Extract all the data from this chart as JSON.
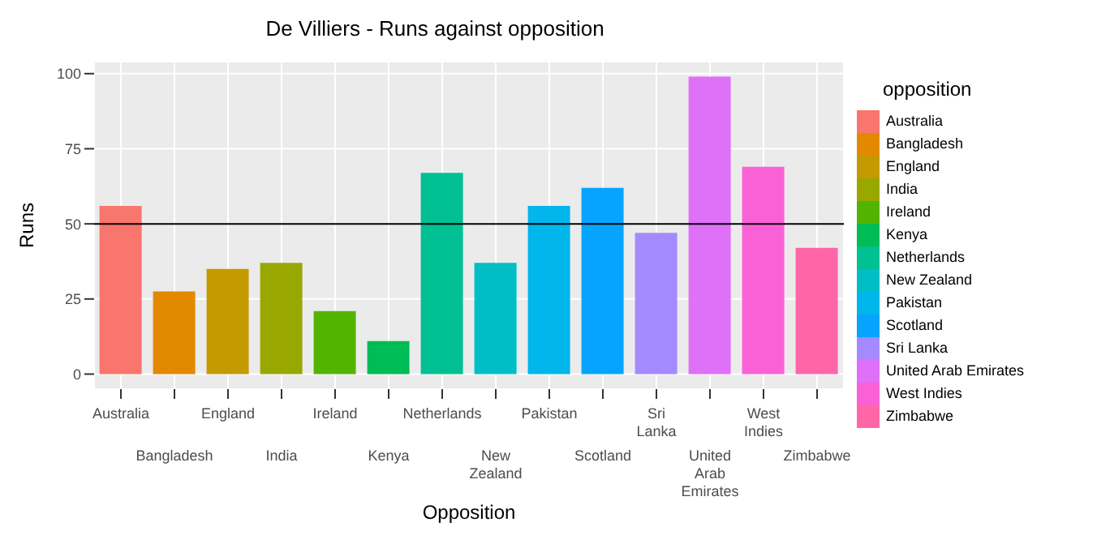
{
  "chart_data": {
    "type": "bar",
    "title": "De Villiers - Runs against opposition",
    "xlabel": "Opposition",
    "ylabel": "Runs",
    "legend_title": "opposition",
    "stacked": true,
    "categories": [
      "Australia",
      "Bangladesh",
      "England",
      "India",
      "Ireland",
      "Kenya",
      "Netherlands",
      "New Zealand",
      "Pakistan",
      "Scotland",
      "Sri Lanka",
      "United Arab Emirates",
      "West Indies",
      "Zimbabwe"
    ],
    "series": [
      {
        "name": "Australia",
        "color": "#f8766d",
        "values": [
          56,
          null,
          null,
          null,
          null,
          null,
          null,
          null,
          null,
          null,
          null,
          null,
          null,
          null
        ]
      },
      {
        "name": "Bangladesh",
        "color": "#e38900",
        "values": [
          null,
          27.5,
          null,
          null,
          null,
          null,
          null,
          null,
          null,
          null,
          null,
          null,
          null,
          null
        ]
      },
      {
        "name": "England",
        "color": "#c49a00",
        "values": [
          null,
          null,
          35,
          null,
          null,
          null,
          null,
          null,
          null,
          null,
          null,
          null,
          null,
          null
        ]
      },
      {
        "name": "India",
        "color": "#99a800",
        "values": [
          null,
          null,
          null,
          37,
          null,
          null,
          null,
          null,
          null,
          null,
          null,
          null,
          null,
          null
        ]
      },
      {
        "name": "Ireland",
        "color": "#53b400",
        "values": [
          null,
          null,
          null,
          null,
          21,
          null,
          null,
          null,
          null,
          null,
          null,
          null,
          null,
          null
        ]
      },
      {
        "name": "Kenya",
        "color": "#00bc56",
        "values": [
          null,
          null,
          null,
          null,
          null,
          11,
          null,
          null,
          null,
          null,
          null,
          null,
          null,
          null
        ]
      },
      {
        "name": "Netherlands",
        "color": "#00c094",
        "values": [
          null,
          null,
          null,
          null,
          null,
          null,
          67,
          null,
          null,
          null,
          null,
          null,
          null,
          null
        ]
      },
      {
        "name": "New Zealand",
        "color": "#00bfc4",
        "values": [
          null,
          null,
          null,
          null,
          null,
          null,
          null,
          37,
          null,
          null,
          null,
          null,
          null,
          null
        ]
      },
      {
        "name": "Pakistan",
        "color": "#00b6eb",
        "values": [
          null,
          null,
          null,
          null,
          null,
          null,
          null,
          null,
          56,
          null,
          null,
          null,
          null,
          null
        ]
      },
      {
        "name": "Scotland",
        "color": "#06a4ff",
        "values": [
          null,
          null,
          null,
          null,
          null,
          null,
          null,
          null,
          null,
          62,
          null,
          null,
          null,
          null
        ]
      },
      {
        "name": "Sri Lanka",
        "color": "#a58aff",
        "values": [
          null,
          null,
          null,
          null,
          null,
          null,
          null,
          null,
          null,
          null,
          47,
          null,
          null,
          null
        ]
      },
      {
        "name": "United Arab Emirates",
        "color": "#df70f8",
        "values": [
          null,
          null,
          null,
          null,
          null,
          null,
          null,
          null,
          null,
          null,
          null,
          99,
          null,
          null
        ]
      },
      {
        "name": "West Indies",
        "color": "#fb61d7",
        "values": [
          null,
          null,
          null,
          null,
          null,
          null,
          null,
          null,
          null,
          null,
          null,
          null,
          69,
          null
        ]
      },
      {
        "name": "Zimbabwe",
        "color": "#ff66a8",
        "values": [
          null,
          null,
          null,
          null,
          null,
          null,
          null,
          null,
          null,
          null,
          null,
          null,
          null,
          42
        ]
      }
    ],
    "ylim": [
      -5,
      104
    ],
    "yticks": [
      0,
      25,
      50,
      75,
      100
    ],
    "grid": true,
    "legend": "right",
    "ref_lines": [
      {
        "axis": "y",
        "value": 50,
        "color": "#000000"
      }
    ]
  }
}
